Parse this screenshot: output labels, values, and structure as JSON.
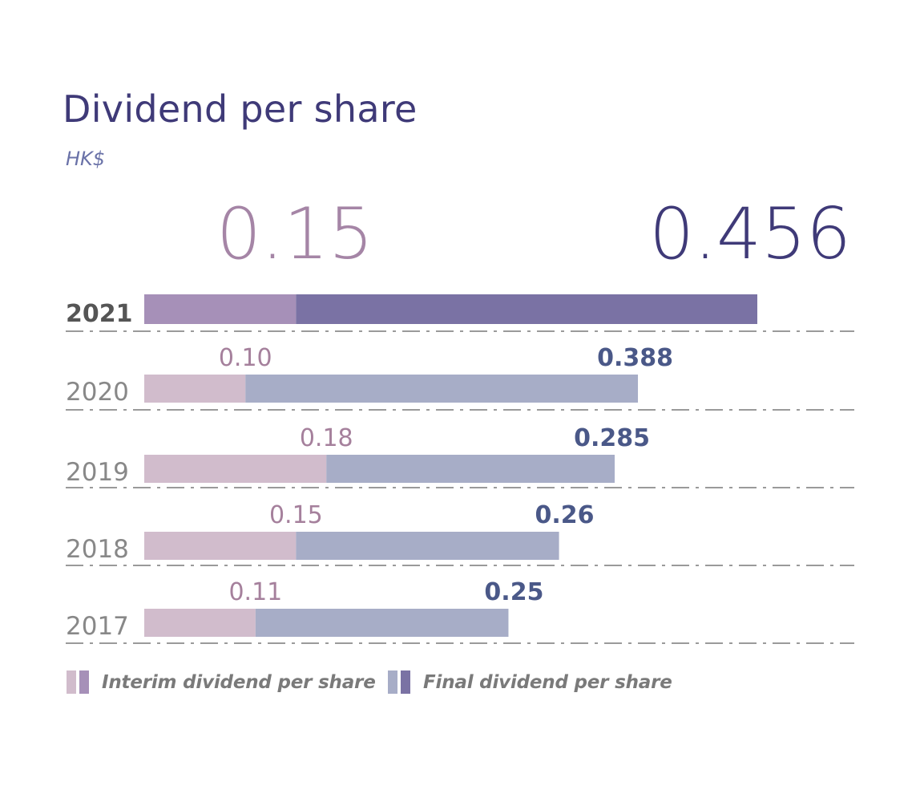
{
  "title": "Dividend per share",
  "unit": "HK$",
  "chart_data": {
    "type": "bar",
    "orientation": "horizontal",
    "stacked": true,
    "title": "Dividend per share",
    "ylabel": "HK$",
    "categories": [
      "2021",
      "2020",
      "2019",
      "2018",
      "2017"
    ],
    "series": [
      {
        "name": "Interim dividend per share",
        "values": [
          0.15,
          0.1,
          0.18,
          0.15,
          0.11
        ],
        "labels": [
          "0.15",
          "0.10",
          "0.18",
          "0.15",
          "0.11"
        ]
      },
      {
        "name": "Final dividend per share",
        "values": [
          0.456,
          0.388,
          0.285,
          0.26,
          0.25
        ],
        "labels": [
          "0.456",
          "0.388",
          "0.285",
          "0.26",
          "0.25"
        ]
      }
    ],
    "highlight_category": "2021",
    "xlim": [
      0,
      0.603
    ],
    "legend_position": "bottom-left",
    "grid": false
  },
  "colors": {
    "title": "#3f3a78",
    "unit": "#6a72a8",
    "interim_current": "#a690b8",
    "final_current": "#7a72a4",
    "interim_past": "#d1bccc",
    "final_past": "#a7adc7",
    "interim_label_current": "#a585a6",
    "final_label_current": "#3f3a78",
    "interim_label_past": "#a5809c",
    "final_label_past": "#4a5888",
    "year_current": "#555555",
    "year_past": "#888888",
    "divider": "#9a9a9a"
  },
  "legend": {
    "interim_label": "Interim dividend per share",
    "final_label": "Final dividend per share"
  }
}
